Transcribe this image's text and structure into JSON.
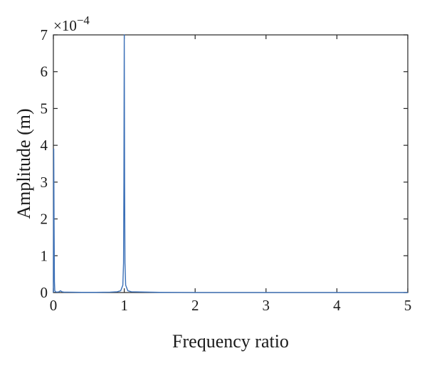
{
  "chart_data": {
    "type": "line",
    "title": "",
    "xlabel": "Frequency ratio",
    "ylabel": "Amplitude (m)",
    "xlim": [
      0,
      5
    ],
    "ylim": [
      0,
      7
    ],
    "x_ticks": [
      0,
      1,
      2,
      3,
      4,
      5
    ],
    "y_ticks": [
      0,
      1,
      2,
      3,
      4,
      5,
      6,
      7
    ],
    "y_multiplier": "×10",
    "y_multiplier_exponent": "−4",
    "grid": false,
    "legend": "none",
    "line_color": "#3a6fb7",
    "series": [
      {
        "x": [
          0.0,
          0.005,
          0.01,
          0.015,
          0.02,
          0.03,
          0.05,
          0.08,
          0.1,
          0.12,
          0.15,
          0.2,
          0.4,
          0.6,
          0.8,
          0.9,
          0.95,
          0.98,
          0.99,
          0.995,
          1.0,
          1.005,
          1.01,
          1.02,
          1.05,
          1.1,
          1.5,
          2.0,
          3.0,
          4.0,
          5.0
        ],
        "y": [
          0.0,
          3.9,
          1.8,
          0.3,
          0.05,
          0.02,
          0.01,
          0.02,
          0.05,
          0.02,
          0.01,
          0.01,
          0.005,
          0.005,
          0.01,
          0.02,
          0.05,
          0.2,
          0.8,
          3.0,
          7.0,
          3.0,
          0.8,
          0.2,
          0.05,
          0.02,
          0.005,
          0.002,
          0.001,
          0.001,
          0.001
        ]
      }
    ]
  }
}
